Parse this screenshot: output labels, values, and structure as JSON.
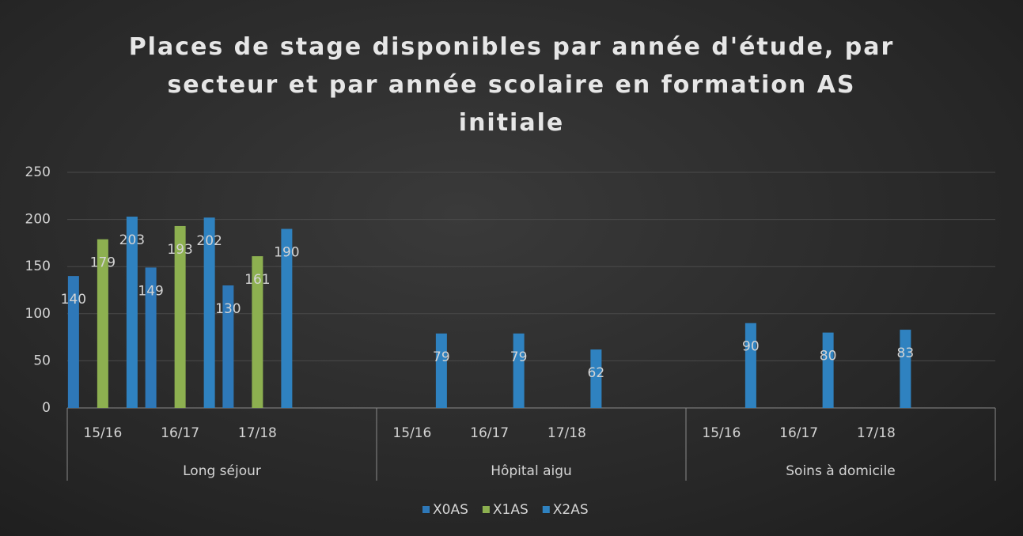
{
  "chart_data": {
    "type": "bar",
    "title": "Places de stage disponibles par année d'étude, par secteur et par année scolaire en formation AS initiale",
    "categories": [
      "15/16",
      "16/17",
      "17/18",
      null,
      "15/16",
      "16/17",
      "17/18",
      null,
      "15/16",
      "16/17",
      "17/18",
      null
    ],
    "category_groups": [
      "Long séjour",
      "Hôpital aigu",
      "Soins à domicile"
    ],
    "series": [
      {
        "name": "X0AS",
        "color": "#2e78b8",
        "values": [
          140,
          149,
          130,
          null,
          null,
          null,
          null,
          null,
          null,
          null,
          null,
          null
        ]
      },
      {
        "name": "X1AS",
        "color": "#8db050",
        "values": [
          179,
          193,
          161,
          null,
          null,
          null,
          null,
          null,
          null,
          null,
          null,
          null
        ]
      },
      {
        "name": "X2AS",
        "color": "#2f82c0",
        "values": [
          203,
          202,
          190,
          null,
          79,
          79,
          62,
          null,
          90,
          80,
          83,
          null
        ]
      }
    ],
    "ylim": [
      0,
      250
    ],
    "yticks": [
      0,
      50,
      100,
      150,
      200,
      250
    ],
    "grid": true,
    "legend": "bottom"
  }
}
